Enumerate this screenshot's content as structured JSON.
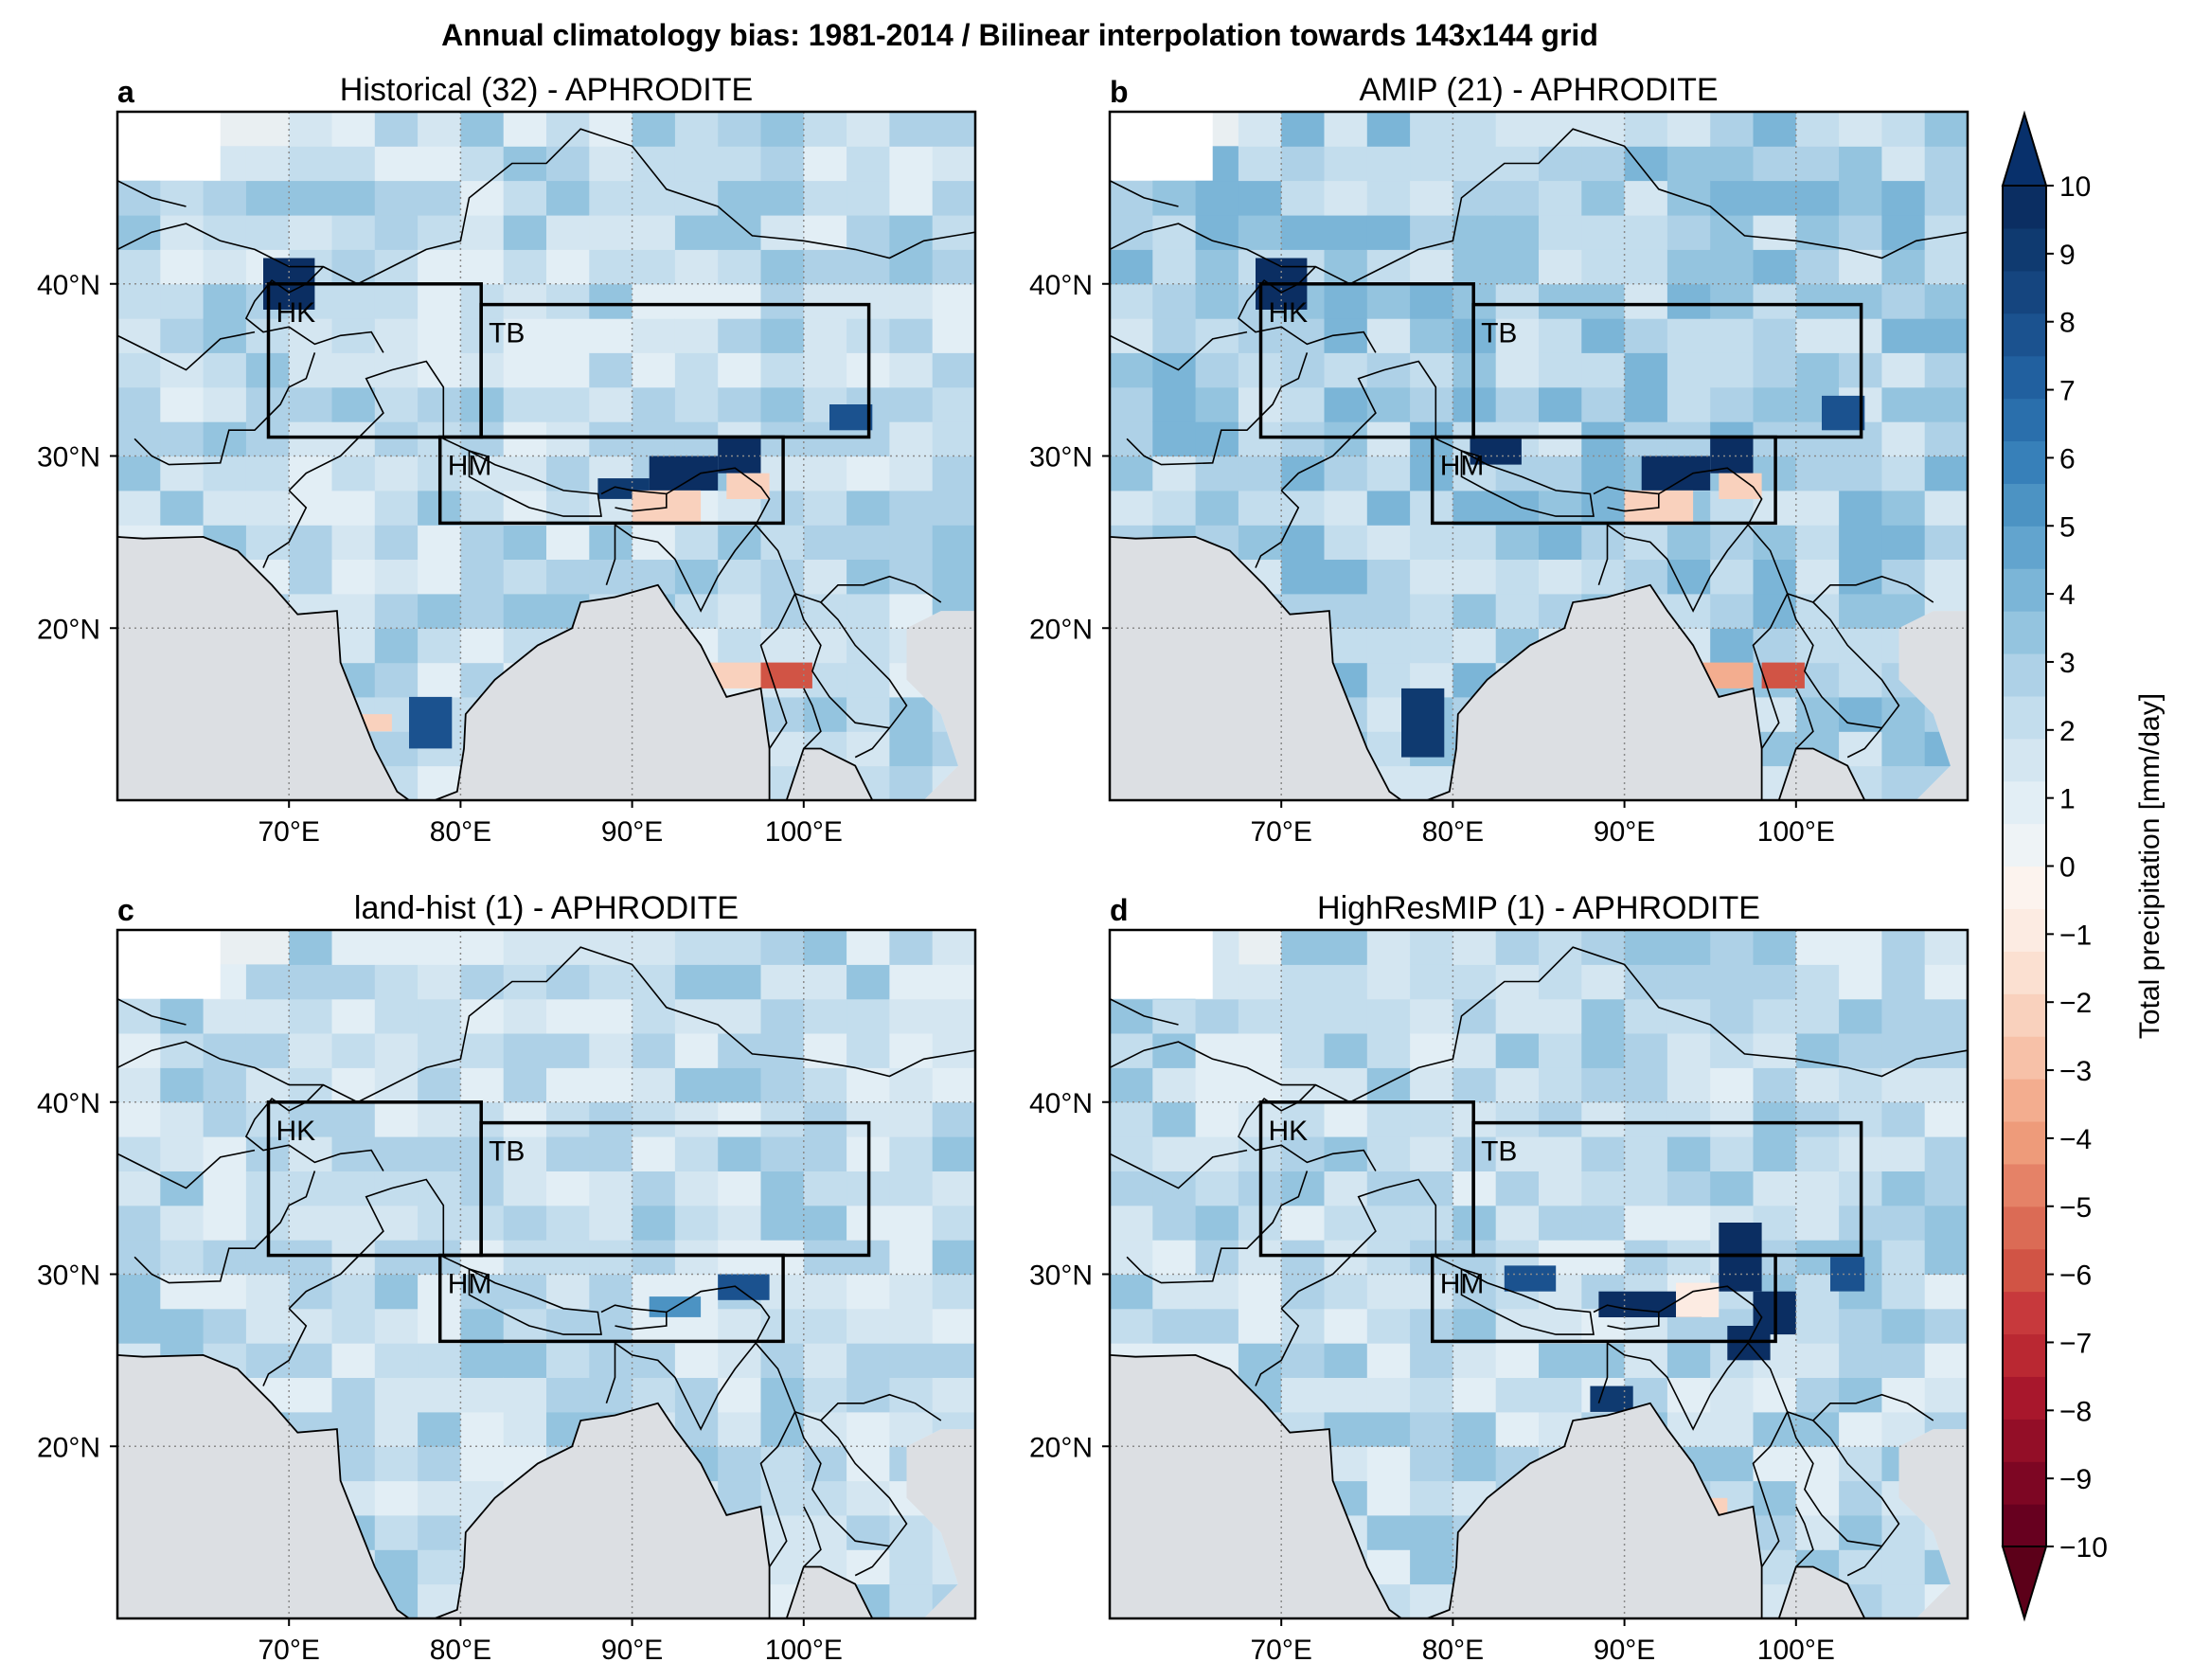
{
  "figure": {
    "title": "Annual climatology bias: 1981-2014 / Bilinear interpolation towards 143x144 grid"
  },
  "panels": [
    {
      "letter": "a",
      "title": "Historical (32) - APHRODITE",
      "highlights": [
        {
          "lon": 68.5,
          "lat": 38.5,
          "w": 3,
          "h": 3,
          "v": 7
        },
        {
          "lon": 95,
          "lat": 29,
          "w": 2.5,
          "h": 2,
          "v": 8
        },
        {
          "lon": 91,
          "lat": 28,
          "w": 4,
          "h": 2,
          "v": 8
        },
        {
          "lon": 88,
          "lat": 27.5,
          "w": 3,
          "h": 1.2,
          "v": 5
        },
        {
          "lon": 95.5,
          "lat": 27.5,
          "w": 2.5,
          "h": 1.5,
          "v": -4
        },
        {
          "lon": 90,
          "lat": 26,
          "w": 4,
          "h": 2,
          "v": -4
        },
        {
          "lon": 97.5,
          "lat": 16.5,
          "w": 3,
          "h": 1.5,
          "v": -7
        },
        {
          "lon": 93.5,
          "lat": 16.5,
          "w": 4,
          "h": 1.5,
          "v": -4
        },
        {
          "lon": 77,
          "lat": 13,
          "w": 2.5,
          "h": 3,
          "v": 4
        },
        {
          "lon": 73.5,
          "lat": 14,
          "w": 2.5,
          "h": 1,
          "v": -4
        },
        {
          "lon": 101.5,
          "lat": 31.5,
          "w": 2.5,
          "h": 1.5,
          "v": 4
        }
      ]
    },
    {
      "letter": "b",
      "title": "AMIP (21) - APHRODITE",
      "highlights": [
        {
          "lon": 68.5,
          "lat": 38.5,
          "w": 3,
          "h": 3,
          "v": 7
        },
        {
          "lon": 95,
          "lat": 29,
          "w": 2.5,
          "h": 2,
          "v": 9
        },
        {
          "lon": 91,
          "lat": 28,
          "w": 4,
          "h": 2,
          "v": 9
        },
        {
          "lon": 81,
          "lat": 29.5,
          "w": 3,
          "h": 1.5,
          "v": 6
        },
        {
          "lon": 95.5,
          "lat": 27.5,
          "w": 2.5,
          "h": 1.5,
          "v": -4
        },
        {
          "lon": 90,
          "lat": 26,
          "w": 4,
          "h": 2,
          "v": -4
        },
        {
          "lon": 98,
          "lat": 16.5,
          "w": 2.5,
          "h": 1.5,
          "v": -7
        },
        {
          "lon": 94,
          "lat": 16.5,
          "w": 3.5,
          "h": 1.5,
          "v": -5
        },
        {
          "lon": 77,
          "lat": 12.5,
          "w": 2.5,
          "h": 4,
          "v": 5
        },
        {
          "lon": 101.5,
          "lat": 31.5,
          "w": 2.5,
          "h": 2,
          "v": 4
        }
      ]
    },
    {
      "letter": "c",
      "title": "land-hist (1) - APHRODITE",
      "highlights": [
        {
          "lon": 95,
          "lat": 28.5,
          "w": 3,
          "h": 1.5,
          "v": 4
        },
        {
          "lon": 91,
          "lat": 27.5,
          "w": 3,
          "h": 1.2,
          "v": 2
        }
      ]
    },
    {
      "letter": "d",
      "title": "HighResMIP (1) - APHRODITE",
      "highlights": [
        {
          "lon": 95.5,
          "lat": 29,
          "w": 2.5,
          "h": 4,
          "v": 10
        },
        {
          "lon": 88.5,
          "lat": 27.5,
          "w": 6,
          "h": 1.5,
          "v": 8
        },
        {
          "lon": 97.5,
          "lat": 26.5,
          "w": 2.5,
          "h": 2.5,
          "v": 8
        },
        {
          "lon": 96,
          "lat": 25,
          "w": 2.5,
          "h": 2,
          "v": 6
        },
        {
          "lon": 83,
          "lat": 29,
          "w": 3,
          "h": 1.5,
          "v": 4
        },
        {
          "lon": 88,
          "lat": 22,
          "w": 2.5,
          "h": 1.5,
          "v": 5
        },
        {
          "lon": 93,
          "lat": 27.5,
          "w": 2.5,
          "h": 2,
          "v": -3
        },
        {
          "lon": 91,
          "lat": 15.5,
          "w": 5,
          "h": 1.5,
          "v": -4
        },
        {
          "lon": 102,
          "lat": 29,
          "w": 2,
          "h": 2,
          "v": 4
        }
      ]
    }
  ],
  "regions": [
    {
      "label": "HK",
      "lon0": 68.8,
      "lon1": 81.2,
      "lat0": 31.1,
      "lat1": 40.0
    },
    {
      "label": "TB",
      "lon0": 81.2,
      "lon1": 103.8,
      "lat0": 31.1,
      "lat1": 38.8
    },
    {
      "label": "HM",
      "lon0": 78.8,
      "lon1": 98.8,
      "lat0": 26.1,
      "lat1": 31.1
    }
  ],
  "axes": {
    "lon_range": [
      60,
      110
    ],
    "lat_range": [
      10,
      50
    ],
    "x_ticks": [
      {
        "value": 70,
        "label": "70°E"
      },
      {
        "value": 80,
        "label": "80°E"
      },
      {
        "value": 90,
        "label": "90°E"
      },
      {
        "value": 100,
        "label": "100°E"
      }
    ],
    "y_ticks": [
      {
        "value": 40,
        "label": "40°N"
      },
      {
        "value": 30,
        "label": "30°N"
      },
      {
        "value": 20,
        "label": "20°N"
      }
    ],
    "gridlines": true
  },
  "colorbar": {
    "label": "Total precipitation [mm/day]",
    "min": -10,
    "max": 10,
    "step": 0.5,
    "tick_labels": [
      "10",
      "9",
      "8",
      "7",
      "6",
      "5",
      "4",
      "3",
      "2",
      "1",
      "0",
      "−1",
      "−2",
      "−3",
      "−4",
      "−5",
      "−6",
      "−7",
      "−8",
      "−9",
      "−10"
    ],
    "extend": "both",
    "colors_low_to_high": [
      "#67001f",
      "#7d0623",
      "#930e27",
      "#a8172c",
      "#ba2832",
      "#c7393c",
      "#d15445",
      "#db6b55",
      "#e58267",
      "#ee9b7a",
      "#f3ad8f",
      "#f7c1a8",
      "#f9d1bd",
      "#fbe0d1",
      "#fcebe2",
      "#fcf3ee",
      "#eef3f6",
      "#e2eef5",
      "#d4e6f1",
      "#c3dded",
      "#aed1e7",
      "#94c4df",
      "#7bb5d7",
      "#62a4ce",
      "#4c93c3",
      "#3780b9",
      "#2a6fac",
      "#21609f",
      "#1b528f",
      "#15457f",
      "#0f3a70",
      "#0b2e62"
    ],
    "over_color": "#08306b",
    "under_color": "#5c0019"
  },
  "ocean_color": "#dcdfe3",
  "land_base_color": "#e9eff2"
}
